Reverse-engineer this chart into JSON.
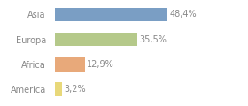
{
  "categories": [
    "Asia",
    "Europa",
    "Africa",
    "America"
  ],
  "values": [
    48.4,
    35.5,
    12.9,
    3.2
  ],
  "labels": [
    "48,4%",
    "35,5%",
    "12,9%",
    "3,2%"
  ],
  "bar_colors": [
    "#7a9ec4",
    "#b5c98a",
    "#e8a97a",
    "#e8d87a"
  ],
  "background_color": "#ffffff",
  "xlim": [
    0,
    70
  ],
  "bar_height": 0.55,
  "label_fontsize": 7.0,
  "tick_fontsize": 7.0,
  "tick_color": "#888888",
  "label_color": "#888888"
}
